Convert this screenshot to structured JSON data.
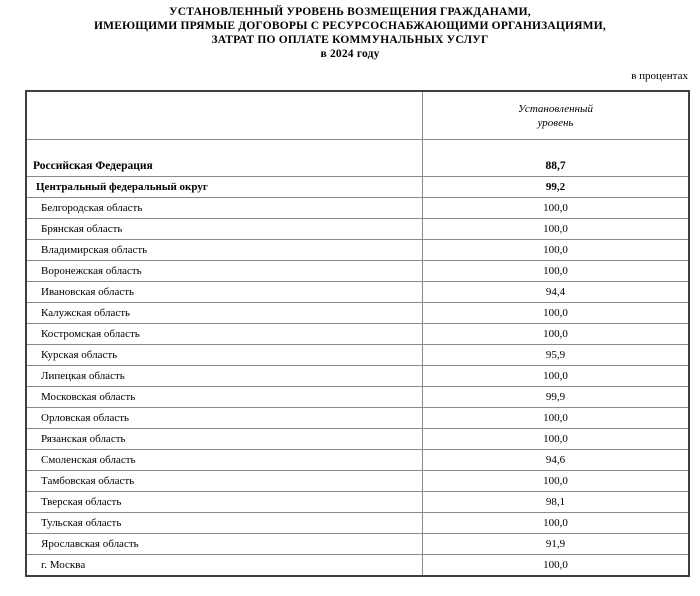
{
  "page": {
    "title_lines": [
      "УСТАНОВЛЕННЫЙ УРОВЕНЬ ВОЗМЕЩЕНИЯ ГРАЖДАНАМИ,",
      "ИМЕЮЩИМИ ПРЯМЫЕ ДОГОВОРЫ С РЕСУРСОСНАБЖАЮЩИМИ ОРГАНИЗАЦИЯМИ,",
      "ЗАТРАТ ПО ОПЛАТЕ КОММУНАЛЬНЫХ УСЛУГ",
      "в 2024 году"
    ],
    "units_note": "в процентах"
  },
  "table": {
    "value_header": [
      "Установленный",
      "уровень"
    ],
    "rows": [
      {
        "name": "Российская Федерация",
        "value": "88,7",
        "cls": "federation"
      },
      {
        "name": "Центральный федеральный округ",
        "value": "99,2",
        "cls": "district"
      },
      {
        "name": "Белгородская область",
        "value": "100,0",
        "cls": "region"
      },
      {
        "name": "Брянская область",
        "value": "100,0",
        "cls": "region"
      },
      {
        "name": "Владимирская область",
        "value": "100,0",
        "cls": "region"
      },
      {
        "name": "Воронежская область",
        "value": "100,0",
        "cls": "region"
      },
      {
        "name": "Ивановская область",
        "value": "94,4",
        "cls": "region"
      },
      {
        "name": "Калужская область",
        "value": "100,0",
        "cls": "region"
      },
      {
        "name": "Костромская область",
        "value": "100,0",
        "cls": "region"
      },
      {
        "name": "Курская область",
        "value": "95,9",
        "cls": "region"
      },
      {
        "name": "Липецкая область",
        "value": "100,0",
        "cls": "region"
      },
      {
        "name": "Московская область",
        "value": "99,9",
        "cls": "region"
      },
      {
        "name": "Орловская область",
        "value": "100,0",
        "cls": "region"
      },
      {
        "name": "Рязанская область",
        "value": "100,0",
        "cls": "region"
      },
      {
        "name": "Смоленская область",
        "value": "94,6",
        "cls": "region"
      },
      {
        "name": "Тамбовская область",
        "value": "100,0",
        "cls": "region"
      },
      {
        "name": "Тверская область",
        "value": "98,1",
        "cls": "region"
      },
      {
        "name": "Тульская область",
        "value": "100,0",
        "cls": "region"
      },
      {
        "name": "Ярославская область",
        "value": "91,9",
        "cls": "region"
      },
      {
        "name": "г. Москва",
        "value": "100,0",
        "cls": "region"
      }
    ]
  },
  "colors": {
    "background": "#ffffff",
    "text": "#000000",
    "border_outer": "#404040",
    "border_inner": "#8a8a8a"
  }
}
